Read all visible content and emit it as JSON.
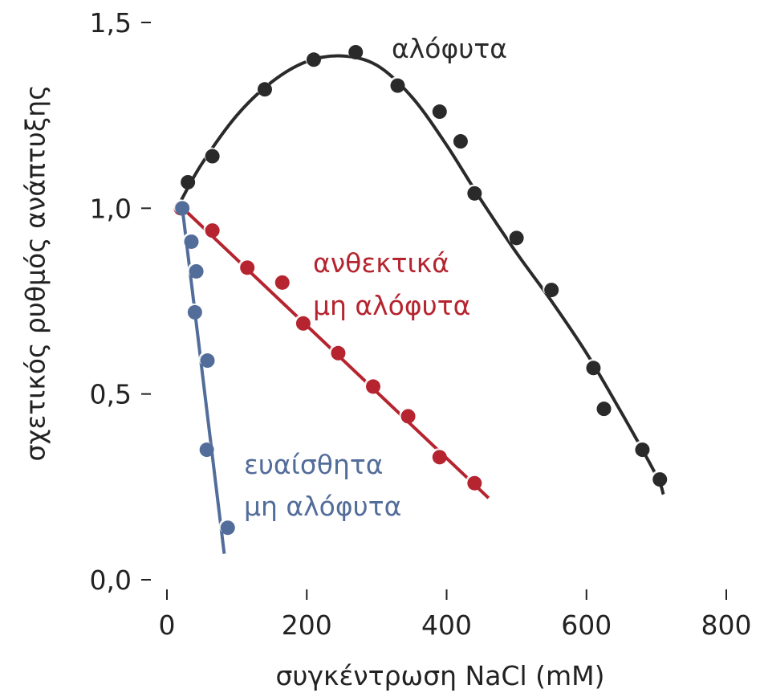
{
  "chart_data": {
    "type": "scatter",
    "title": "",
    "xlabel": "συγκέντρωση NaCl (mM)",
    "ylabel": "σχετικός ρυθμός ανάπτυξης",
    "xlim": [
      0,
      800
    ],
    "ylim": [
      0,
      1.5
    ],
    "x_ticks": [
      0,
      200,
      400,
      600,
      800
    ],
    "x_tick_labels": [
      "0",
      "200",
      "400",
      "600",
      "800"
    ],
    "y_ticks": [
      0,
      0.5,
      1.0,
      1.5
    ],
    "y_tick_labels": [
      "0,0",
      "0,5",
      "1,0",
      "1,5"
    ],
    "grid": false,
    "series": [
      {
        "name": "αλόφυτα",
        "color": "#2a2a2a",
        "fit": "curve",
        "points": [
          [
            30,
            1.07
          ],
          [
            65,
            1.14
          ],
          [
            140,
            1.32
          ],
          [
            210,
            1.4
          ],
          [
            270,
            1.42
          ],
          [
            330,
            1.33
          ],
          [
            390,
            1.26
          ],
          [
            420,
            1.18
          ],
          [
            440,
            1.04
          ],
          [
            500,
            0.92
          ],
          [
            550,
            0.78
          ],
          [
            610,
            0.57
          ],
          [
            625,
            0.46
          ],
          [
            680,
            0.35
          ],
          [
            705,
            0.27
          ]
        ],
        "fit_points": [
          [
            20,
            1.02
          ],
          [
            50,
            1.12
          ],
          [
            100,
            1.25
          ],
          [
            150,
            1.34
          ],
          [
            200,
            1.395
          ],
          [
            250,
            1.41
          ],
          [
            300,
            1.385
          ],
          [
            350,
            1.3
          ],
          [
            400,
            1.17
          ],
          [
            450,
            1.02
          ],
          [
            500,
            0.88
          ],
          [
            550,
            0.75
          ],
          [
            600,
            0.61
          ],
          [
            650,
            0.45
          ],
          [
            700,
            0.28
          ],
          [
            710,
            0.23
          ]
        ]
      },
      {
        "name": "ανθεκτικά μη αλόφυτα",
        "name_lines": [
          "ανθεκτικά",
          "μη αλόφυτα"
        ],
        "color": "#b5242f",
        "fit": "line",
        "points": [
          [
            20,
            1.0
          ],
          [
            65,
            0.94
          ],
          [
            115,
            0.84
          ],
          [
            165,
            0.8
          ],
          [
            195,
            0.69
          ],
          [
            245,
            0.61
          ],
          [
            295,
            0.52
          ],
          [
            345,
            0.44
          ],
          [
            390,
            0.33
          ],
          [
            440,
            0.26
          ]
        ],
        "fit_points": [
          [
            20,
            1.005
          ],
          [
            460,
            0.22
          ]
        ]
      },
      {
        "name": "ευαίσθητα μη αλόφυτα",
        "name_lines": [
          "ευαίσθητα",
          "μη αλόφυτα"
        ],
        "color": "#536d9a",
        "fit": "line",
        "points": [
          [
            22,
            1.0
          ],
          [
            35,
            0.91
          ],
          [
            42,
            0.83
          ],
          [
            40,
            0.72
          ],
          [
            58,
            0.59
          ],
          [
            57,
            0.35
          ],
          [
            87,
            0.14
          ]
        ],
        "fit_points": [
          [
            22,
            1.0
          ],
          [
            82,
            0.07
          ]
        ]
      }
    ]
  }
}
